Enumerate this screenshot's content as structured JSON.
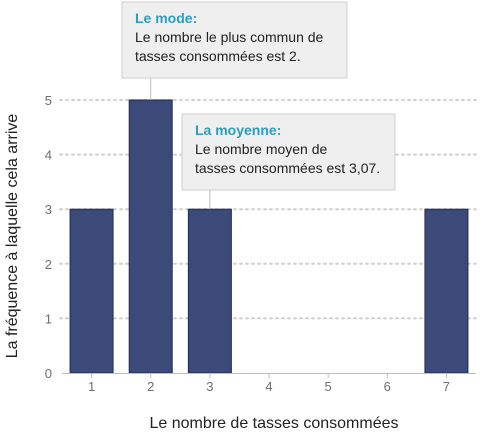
{
  "chart_data": {
    "type": "bar",
    "categories": [
      "1",
      "2",
      "3",
      "4",
      "5",
      "6",
      "7"
    ],
    "values": [
      3,
      5,
      3,
      0,
      0,
      0,
      3
    ],
    "title": "",
    "xlabel": "Le nombre de tasses consommées",
    "ylabel": "La fréquence à laquelle cela arrive",
    "ylim": [
      0,
      5
    ],
    "yticks": [
      "0",
      "1",
      "2",
      "3",
      "4",
      "5"
    ],
    "grid": true,
    "bar_color": "#3b4a78",
    "accent_color": "#2a9fc2",
    "annotations": [
      {
        "id": "mode",
        "title": "Le mode:",
        "lines": [
          "Le nombre le plus commun de",
          "tasses consommées est 2."
        ],
        "target_category": "2"
      },
      {
        "id": "mean",
        "title": "La moyenne:",
        "lines": [
          "Le nombre moyen de",
          "tasses consommées est 3,07."
        ],
        "target_category": "3"
      }
    ]
  }
}
